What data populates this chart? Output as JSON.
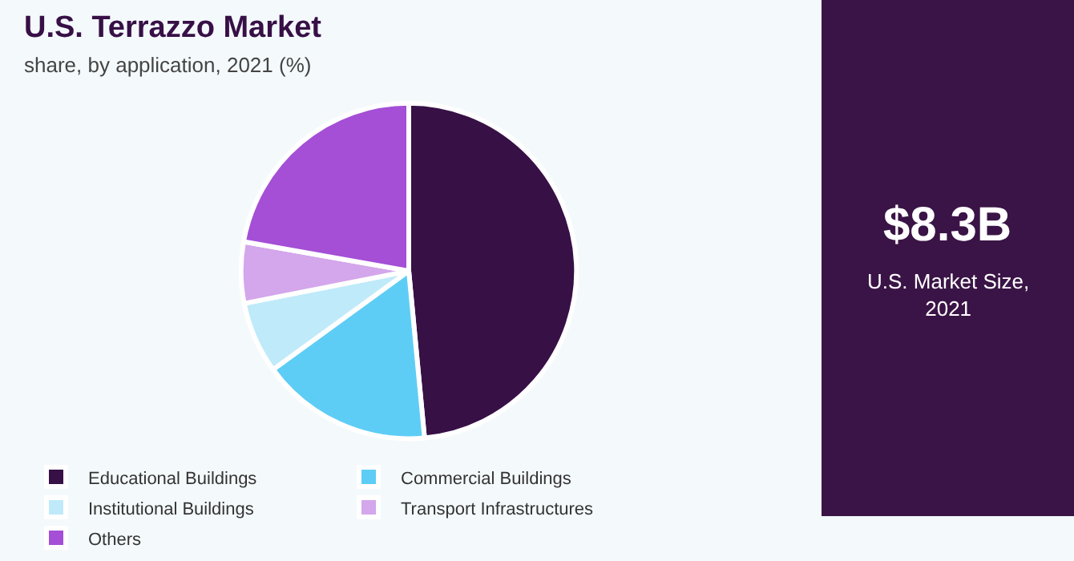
{
  "chart_data": [
    {
      "type": "pie",
      "title": "U.S. Terrazzo Market",
      "subtitle": "share, by application, 2021 (%)",
      "categories": [
        "Educational Buildings",
        "Commercial Buildings",
        "Institutional Buildings",
        "Transport Infrastructures",
        "Others"
      ],
      "values": [
        48.5,
        16.5,
        6.9,
        5.9,
        22.2
      ],
      "colors": [
        "#371046",
        "#5ecdf6",
        "#bfeaf9",
        "#d4a6eb",
        "#a44fd6"
      ],
      "legend": "bottom"
    },
    {
      "type": "other",
      "title": "$8.3B",
      "subtitle": "U.S. Market Size,\n2021"
    }
  ]
}
